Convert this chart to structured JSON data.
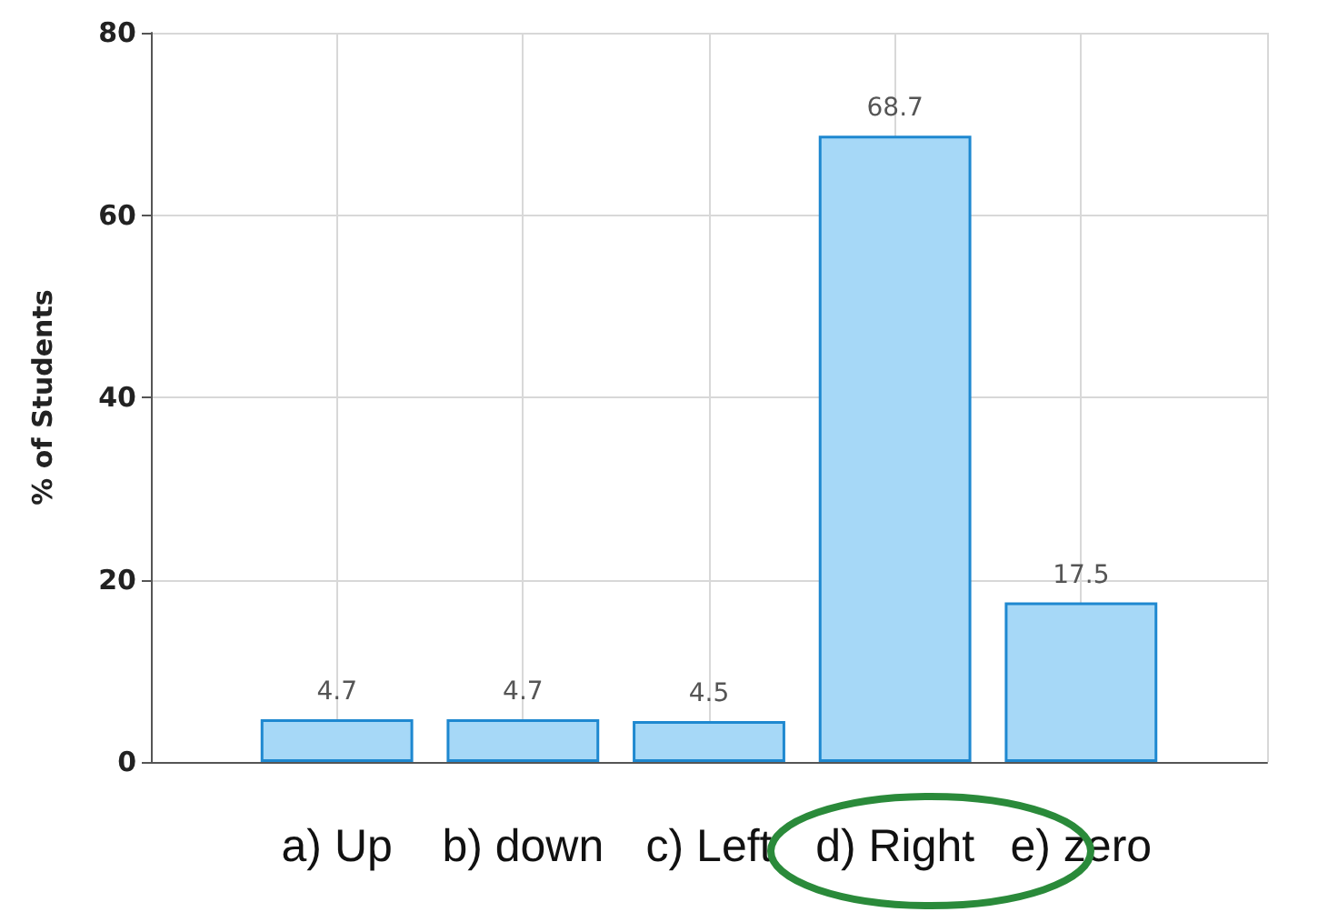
{
  "chart_data": {
    "type": "bar",
    "ylabel": "% of Students",
    "categories": [
      "a) Up",
      "b) down",
      "c) Left",
      "d) Right",
      "e) zero"
    ],
    "values": [
      4.7,
      4.7,
      4.5,
      68.7,
      17.5
    ],
    "color": "#a6d8f7",
    "ylim": [
      0,
      80
    ],
    "yticks": [
      0,
      20,
      40,
      60,
      80
    ],
    "grid": true,
    "data_labels": true
  }
}
